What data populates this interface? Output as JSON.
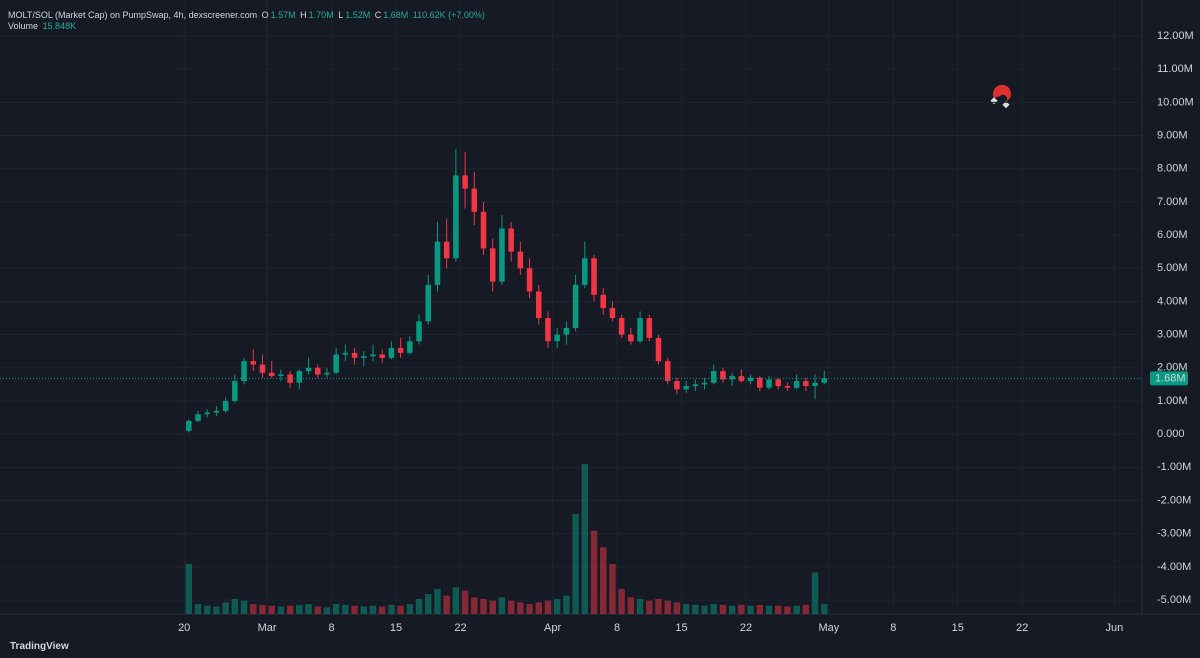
{
  "header": {
    "title": "MOLT/SOL (Market Cap) on PumpSwap, 4h, dexscreener.com",
    "o_label": "O",
    "o": "1.57M",
    "h_label": "H",
    "h": "1.70M",
    "l_label": "L",
    "l": "1.52M",
    "c_label": "C",
    "c": "1.68M",
    "change": "110.62K (+7.00%)",
    "volume_label": "Volume",
    "volume": "15.848K"
  },
  "brand": "TradingView",
  "chart_data": {
    "type": "candlestick",
    "up_color": "#089981",
    "down_color": "#f23645",
    "x": [
      "02-20",
      "02-21",
      "02-22",
      "02-23",
      "02-24",
      "02-25",
      "02-26",
      "02-27",
      "02-28",
      "03-01",
      "03-02",
      "03-03",
      "03-04",
      "03-05",
      "03-06",
      "03-07",
      "03-08",
      "03-09",
      "03-10",
      "03-11",
      "03-12",
      "03-13",
      "03-14",
      "03-15",
      "03-16",
      "03-17",
      "03-18",
      "03-19",
      "03-20",
      "03-21",
      "03-22",
      "03-23",
      "03-24",
      "03-25",
      "03-26",
      "03-27",
      "03-28",
      "03-29",
      "03-30",
      "03-31",
      "04-01",
      "04-02",
      "04-03",
      "04-04",
      "04-05",
      "04-06",
      "04-07",
      "04-08",
      "04-09",
      "04-10",
      "04-11",
      "04-12",
      "04-13",
      "04-14",
      "04-15",
      "04-16",
      "04-17",
      "04-18",
      "04-19",
      "04-20",
      "04-21",
      "04-22",
      "04-23",
      "04-24",
      "04-25",
      "04-26",
      "04-27",
      "04-28",
      "04-29",
      "04-30"
    ],
    "open": [
      100000,
      400000,
      600000,
      650000,
      700000,
      1000000,
      1600000,
      2200000,
      2100000,
      1850000,
      1750000,
      1800000,
      1550000,
      1900000,
      2000000,
      1800000,
      1850000,
      2400000,
      2450000,
      2300000,
      2350000,
      2400000,
      2300000,
      2600000,
      2450000,
      2800000,
      3400000,
      4500000,
      5800000,
      5300000,
      7800000,
      7400000,
      6700000,
      5600000,
      4600000,
      6200000,
      5500000,
      5000000,
      4300000,
      3500000,
      2800000,
      3000000,
      3200000,
      4500000,
      5300000,
      4200000,
      3800000,
      3500000,
      3000000,
      2800000,
      3500000,
      2900000,
      2200000,
      1600000,
      1350000,
      1450000,
      1500000,
      1550000,
      1900000,
      1650000,
      1750000,
      1600000,
      1700000,
      1400000,
      1650000,
      1450000,
      1400000,
      1600000,
      1450000,
      1550000
    ],
    "high": [
      450000,
      700000,
      750000,
      850000,
      1100000,
      1800000,
      2300000,
      2550000,
      2400000,
      2200000,
      1950000,
      1900000,
      1950000,
      2300000,
      2100000,
      2000000,
      2600000,
      2700000,
      2600000,
      2500000,
      2700000,
      2550000,
      2800000,
      2900000,
      2950000,
      3600000,
      4800000,
      6400000,
      6500000,
      8600000,
      8500000,
      7900000,
      7000000,
      5900000,
      6600000,
      6400000,
      5800000,
      5300000,
      4500000,
      3700000,
      3200000,
      3400000,
      4800000,
      5800000,
      5400000,
      4400000,
      4000000,
      3600000,
      3200000,
      3700000,
      3600000,
      3000000,
      2300000,
      1700000,
      1600000,
      1650000,
      1700000,
      2100000,
      2000000,
      1850000,
      1950000,
      1800000,
      1750000,
      1750000,
      1700000,
      1550000,
      1800000,
      1700000,
      1800000,
      1900000
    ],
    "low": [
      50000,
      350000,
      500000,
      550000,
      650000,
      950000,
      1500000,
      1900000,
      1700000,
      1700000,
      1600000,
      1400000,
      1350000,
      1800000,
      1700000,
      1700000,
      1800000,
      2200000,
      2100000,
      2050000,
      2200000,
      2150000,
      2250000,
      2300000,
      2400000,
      2700000,
      3300000,
      4300000,
      5000000,
      5200000,
      6800000,
      6300000,
      5400000,
      4300000,
      4500000,
      5200000,
      4800000,
      4100000,
      3300000,
      2600000,
      2600000,
      2700000,
      3100000,
      4400000,
      4000000,
      3600000,
      3400000,
      2900000,
      2700000,
      2750000,
      2800000,
      2100000,
      1500000,
      1200000,
      1250000,
      1300000,
      1350000,
      1500000,
      1550000,
      1450000,
      1550000,
      1500000,
      1300000,
      1350000,
      1350000,
      1300000,
      1350000,
      1300000,
      1050000,
      1500000
    ],
    "close": [
      400000,
      600000,
      650000,
      700000,
      1000000,
      1600000,
      2200000,
      2100000,
      1850000,
      1750000,
      1800000,
      1550000,
      1900000,
      2000000,
      1800000,
      1850000,
      2400000,
      2450000,
      2300000,
      2350000,
      2400000,
      2300000,
      2600000,
      2450000,
      2800000,
      3400000,
      4500000,
      5800000,
      5300000,
      7800000,
      7400000,
      6700000,
      5600000,
      4600000,
      6200000,
      5500000,
      5000000,
      4300000,
      3500000,
      2800000,
      3000000,
      3200000,
      4500000,
      5300000,
      4200000,
      3800000,
      3500000,
      3000000,
      2800000,
      3500000,
      2900000,
      2200000,
      1600000,
      1350000,
      1450000,
      1500000,
      1550000,
      1900000,
      1650000,
      1750000,
      1600000,
      1700000,
      1400000,
      1650000,
      1450000,
      1400000,
      1600000,
      1450000,
      1550000,
      1680000
    ],
    "volume": [
      300000,
      60000,
      50000,
      45000,
      70000,
      90000,
      80000,
      60000,
      55000,
      50000,
      45000,
      50000,
      55000,
      60000,
      45000,
      40000,
      60000,
      55000,
      50000,
      45000,
      50000,
      45000,
      55000,
      50000,
      60000,
      90000,
      120000,
      150000,
      110000,
      160000,
      140000,
      100000,
      90000,
      80000,
      100000,
      80000,
      70000,
      60000,
      70000,
      80000,
      90000,
      110000,
      600000,
      900000,
      500000,
      400000,
      300000,
      150000,
      100000,
      90000,
      80000,
      90000,
      80000,
      70000,
      60000,
      55000,
      50000,
      60000,
      55000,
      50000,
      55000,
      50000,
      55000,
      50000,
      50000,
      45000,
      50000,
      55000,
      250000,
      60000
    ],
    "last_price": {
      "value": 1680000,
      "label": "1.68M"
    },
    "xlim": [
      "01-31",
      "06-04"
    ],
    "xticks": [
      {
        "value": "02-20",
        "label": "20"
      },
      {
        "value": "03-01",
        "label": "Mar"
      },
      {
        "value": "03-08",
        "label": "8"
      },
      {
        "value": "03-15",
        "label": "15"
      },
      {
        "value": "03-22",
        "label": "22"
      },
      {
        "value": "04-01",
        "label": "Apr"
      },
      {
        "value": "04-08",
        "label": "8"
      },
      {
        "value": "04-15",
        "label": "15"
      },
      {
        "value": "04-22",
        "label": "22"
      },
      {
        "value": "05-01",
        "label": "May"
      },
      {
        "value": "05-08",
        "label": "8"
      },
      {
        "value": "05-15",
        "label": "15"
      },
      {
        "value": "05-22",
        "label": "22"
      },
      {
        "value": "06-01",
        "label": "Jun"
      }
    ],
    "ylim": [
      -5420000,
      13085000
    ],
    "yticks": [
      {
        "value": -5000000,
        "label": "-5.00M"
      },
      {
        "value": -4000000,
        "label": "-4.00M"
      },
      {
        "value": -3000000,
        "label": "-3.00M"
      },
      {
        "value": -2000000,
        "label": "-2.00M"
      },
      {
        "value": -1000000,
        "label": "-1.00M"
      },
      {
        "value": 0,
        "label": "0.000"
      },
      {
        "value": 1000000,
        "label": "1.00M"
      },
      {
        "value": 2000000,
        "label": "2.00M"
      },
      {
        "value": 3000000,
        "label": "3.00M"
      },
      {
        "value": 4000000,
        "label": "4.00M"
      },
      {
        "value": 5000000,
        "label": "5.00M"
      },
      {
        "value": 6000000,
        "label": "6.00M"
      },
      {
        "value": 7000000,
        "label": "7.00M"
      },
      {
        "value": 8000000,
        "label": "8.00M"
      },
      {
        "value": 9000000,
        "label": "9.00M"
      },
      {
        "value": 10000000,
        "label": "10.00M"
      },
      {
        "value": 11000000,
        "label": "11.00M"
      },
      {
        "value": 12000000,
        "label": "12.00M"
      }
    ],
    "grid": true
  }
}
